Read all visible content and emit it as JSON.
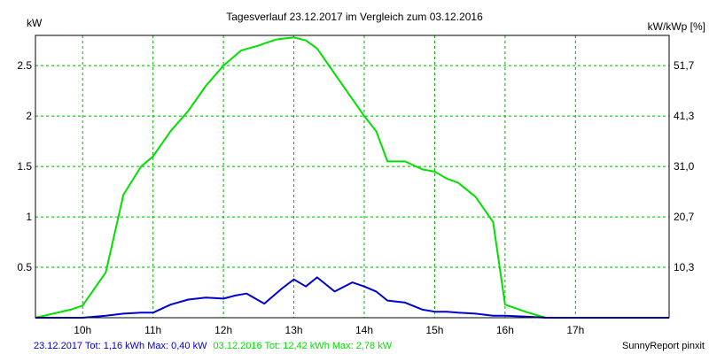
{
  "chart_data": {
    "type": "line",
    "title": "Tagesverlauf 23.12.2017 im Vergleich zum 03.12.2016",
    "ylabel_left": "kW",
    "ylabel_right": "kW/kWp [%]",
    "x_ticks": [
      "10h",
      "11h",
      "12h",
      "13h",
      "14h",
      "15h",
      "16h",
      "17h"
    ],
    "x_tick_values": [
      10,
      11,
      12,
      13,
      14,
      15,
      16,
      17
    ],
    "xlim": [
      9.33,
      18.33
    ],
    "ylim": [
      0,
      2.8
    ],
    "y_ticks": [
      0.5,
      1,
      1.5,
      2,
      2.5
    ],
    "y_tick_labels": [
      "0.5",
      "1",
      "1.5",
      "2",
      "2.5"
    ],
    "y2_ticks": [
      0.5,
      1,
      1.5,
      2,
      2.5
    ],
    "y2_tick_labels": [
      "10,3",
      "20,7",
      "31,0",
      "41,3",
      "51,7"
    ],
    "grid": true,
    "series": [
      {
        "name": "03.12.2016",
        "color": "#00e000",
        "x": [
          9.33,
          9.83,
          10.0,
          10.33,
          10.58,
          10.83,
          11.0,
          11.25,
          11.5,
          11.75,
          12.0,
          12.25,
          12.5,
          12.75,
          13.0,
          13.17,
          13.33,
          13.58,
          13.83,
          14.0,
          14.17,
          14.33,
          14.58,
          14.83,
          15.0,
          15.17,
          15.33,
          15.58,
          15.83,
          16.0,
          16.33,
          16.58,
          16.83,
          17.0,
          17.33,
          17.58,
          17.83,
          18.0,
          18.33
        ],
        "y": [
          0.0,
          0.08,
          0.12,
          0.45,
          1.22,
          1.5,
          1.6,
          1.85,
          2.05,
          2.3,
          2.5,
          2.65,
          2.7,
          2.76,
          2.78,
          2.75,
          2.67,
          2.42,
          2.17,
          2.0,
          1.85,
          1.55,
          1.55,
          1.47,
          1.45,
          1.38,
          1.34,
          1.2,
          0.95,
          0.13,
          0.05,
          0.0,
          0.0,
          0.0,
          0.0,
          0.0,
          0.0,
          0.0,
          0.0
        ]
      },
      {
        "name": "23.12.2017",
        "color": "#0000d0",
        "x": [
          9.33,
          10.0,
          10.33,
          10.58,
          10.83,
          11.0,
          11.25,
          11.5,
          11.75,
          12.0,
          12.17,
          12.33,
          12.58,
          12.83,
          13.0,
          13.17,
          13.33,
          13.58,
          13.83,
          14.0,
          14.17,
          14.33,
          14.58,
          14.83,
          15.0,
          15.17,
          15.33,
          15.58,
          15.83,
          16.0,
          16.33,
          16.58,
          16.83,
          17.0,
          17.33,
          17.58,
          17.83,
          18.0,
          18.33
        ],
        "y": [
          0.0,
          0.0,
          0.02,
          0.04,
          0.05,
          0.05,
          0.13,
          0.18,
          0.2,
          0.19,
          0.22,
          0.24,
          0.14,
          0.29,
          0.38,
          0.31,
          0.4,
          0.26,
          0.35,
          0.31,
          0.26,
          0.17,
          0.15,
          0.08,
          0.06,
          0.06,
          0.05,
          0.04,
          0.02,
          0.02,
          0.01,
          0.0,
          0.0,
          0.0,
          0.0,
          0.0,
          0.0,
          0.0,
          0.0
        ]
      }
    ]
  },
  "footer": {
    "blue_text": "23.12.2017 Tot: 1,16 kWh Max: 0,40 kW",
    "green_text": "03.12.2016 Tot: 12,42 kWh Max: 2,78 kW",
    "credit": "SunnyReport pinxit",
    "blue_color": "#0000d0",
    "green_color": "#00e000"
  }
}
